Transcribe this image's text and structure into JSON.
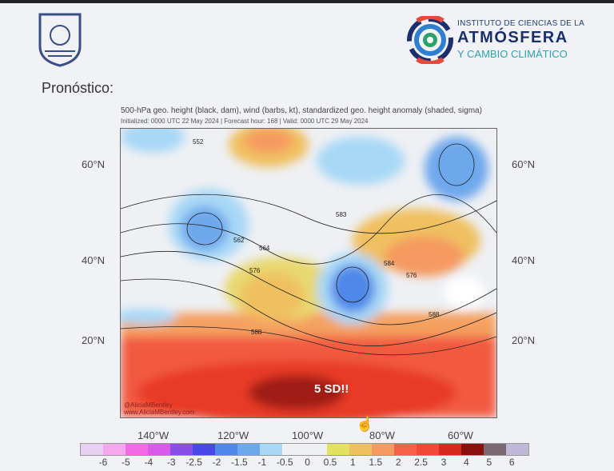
{
  "slide": {
    "title": "Pronóstico:"
  },
  "institute": {
    "line1": "INSTITUTO DE CIENCIAS DE LA",
    "line2": "ATMÓSFERA",
    "line3": "Y CAMBIO CLIMÁTICO"
  },
  "map": {
    "title": "500-hPa geo. height (black, dam), wind (barbs, kt), standardized geo. height anomaly (shaded, sigma)",
    "subtitle": "Initialized: 0000 UTC 22 May 2024 | Forecast hour: 168 | Valid: 0000 UTC 29 May 2024",
    "annotation": "5 SD!!",
    "credit1": "@AliciaMBentley",
    "credit2": "www.AliciaMBentley.com",
    "lat_labels": [
      "60°N",
      "40°N",
      "20°N"
    ],
    "lon_labels": [
      "140°W",
      "120°W",
      "100°W",
      "80°W",
      "60°W"
    ],
    "contour_labels": [
      "552",
      "562",
      "564",
      "576",
      "583",
      "584",
      "576",
      "588",
      "588"
    ]
  },
  "colorbar": {
    "colors": [
      "#e8d0f2",
      "#f5a8ee",
      "#f46ae6",
      "#d85ae8",
      "#8a4ee8",
      "#4848e8",
      "#4f88e8",
      "#6ea8ec",
      "#a8d8f6",
      "#eef0f4",
      "#eef0f4",
      "#e4e060",
      "#efc060",
      "#f59a60",
      "#f56048",
      "#f24838",
      "#d82a1c",
      "#8a1010",
      "#7a6870",
      "#c0b8d8"
    ],
    "labels": [
      "-6",
      "-5",
      "-4",
      "-3",
      "-2.5",
      "-2",
      "-1.5",
      "-1",
      "-0.5",
      "0",
      "0.5",
      "1",
      "1.5",
      "2",
      "2.5",
      "3",
      "4",
      "5",
      "6"
    ]
  }
}
